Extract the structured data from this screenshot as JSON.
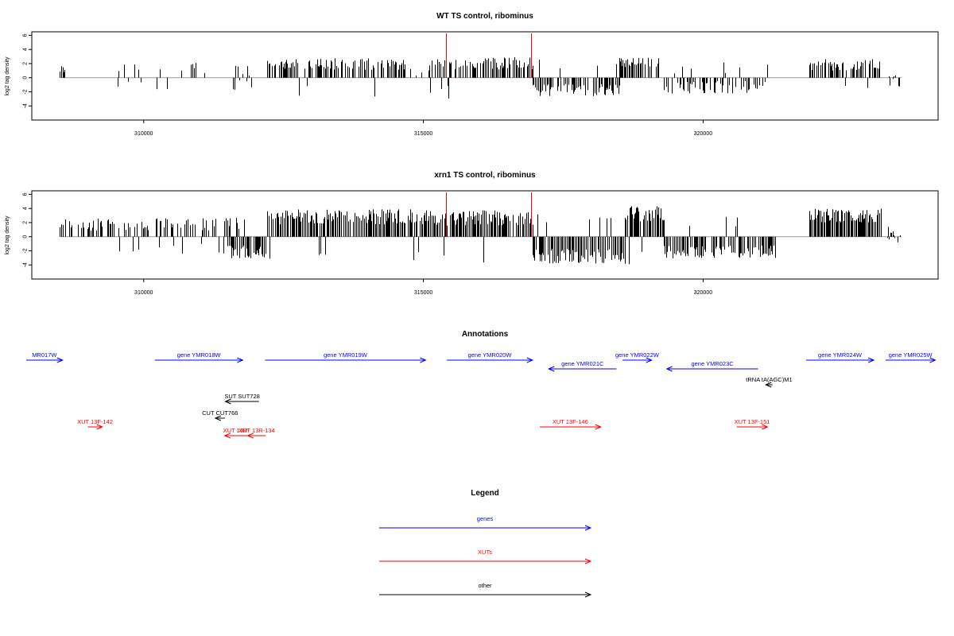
{
  "chart_data": [
    {
      "type": "bar",
      "title": "WT TS control, ribominus",
      "ylabel": "log2 tag density",
      "xlabel": "",
      "xlim": [
        308000,
        324200
      ],
      "ylim": [
        -6,
        6.5
      ],
      "x_ticks": [
        310000,
        315000,
        320000
      ],
      "y_ticks": [
        -4,
        -2,
        0,
        2,
        4,
        6
      ],
      "grid": false,
      "markers": [
        315400,
        316920
      ],
      "marker_color": "#ff0000",
      "segments": [
        {
          "x0": 308500,
          "x1": 308600,
          "seed": 1,
          "density": 0.6,
          "mean": 0.8,
          "amp": 1.4,
          "neg": 0.4
        },
        {
          "x0": 309300,
          "x1": 311200,
          "seed": 2,
          "density": 0.12,
          "mean": 1.0,
          "amp": 1.6,
          "neg": 0.2
        },
        {
          "x0": 311600,
          "x1": 312000,
          "seed": 3,
          "density": 0.5,
          "mean": -0.5,
          "amp": 1.8,
          "neg": 0.7
        },
        {
          "x0": 312200,
          "x1": 314700,
          "seed": 4,
          "density": 0.7,
          "mean": 1.6,
          "amp": 1.8,
          "neg": 0.03
        },
        {
          "x0": 314700,
          "x1": 315100,
          "seed": 5,
          "density": 0.35,
          "mean": 0.4,
          "amp": 1.2,
          "neg": 0.3
        },
        {
          "x0": 315100,
          "x1": 316950,
          "seed": 6,
          "density": 0.75,
          "mean": 1.7,
          "amp": 1.8,
          "neg": 0.02
        },
        {
          "x0": 316950,
          "x1": 318500,
          "seed": 7,
          "density": 0.75,
          "mean": -1.4,
          "amp": 1.8,
          "neg": 0.95
        },
        {
          "x0": 318500,
          "x1": 319200,
          "seed": 8,
          "density": 0.8,
          "mean": 1.8,
          "amp": 1.6,
          "neg": 0.03
        },
        {
          "x0": 319300,
          "x1": 321200,
          "seed": 9,
          "density": 0.5,
          "mean": -1.0,
          "amp": 1.8,
          "neg": 0.9
        },
        {
          "x0": 321900,
          "x1": 323200,
          "seed": 10,
          "density": 0.7,
          "mean": 1.5,
          "amp": 1.6,
          "neg": 0.03
        },
        {
          "x0": 323300,
          "x1": 323550,
          "seed": 11,
          "density": 0.6,
          "mean": 0.0,
          "amp": 2.2,
          "neg": 0.5
        }
      ]
    },
    {
      "type": "bar",
      "title": "xrn1 TS control, ribominus",
      "ylabel": "log2 tag density",
      "xlabel": "",
      "xlim": [
        308000,
        324200
      ],
      "ylim": [
        -6,
        6.5
      ],
      "x_ticks": [
        310000,
        315000,
        320000
      ],
      "y_ticks": [
        -4,
        -2,
        0,
        2,
        4,
        6
      ],
      "grid": false,
      "markers": [
        315400,
        316920
      ],
      "marker_color": "#ff0000",
      "segments": [
        {
          "x0": 308500,
          "x1": 311800,
          "seed": 21,
          "density": 0.55,
          "mean": 1.4,
          "amp": 1.8,
          "neg": 0.08
        },
        {
          "x0": 311500,
          "x1": 312200,
          "seed": 22,
          "density": 0.9,
          "mean": -1.8,
          "amp": 1.8,
          "neg": 0.9
        },
        {
          "x0": 312200,
          "x1": 315200,
          "seed": 23,
          "density": 0.95,
          "mean": 2.4,
          "amp": 2.2,
          "neg": 0.04
        },
        {
          "x0": 315200,
          "x1": 316950,
          "seed": 24,
          "density": 0.95,
          "mean": 2.2,
          "amp": 2.2,
          "neg": 0.04
        },
        {
          "x0": 316950,
          "x1": 318600,
          "seed": 25,
          "density": 0.98,
          "mean": -2.3,
          "amp": 2.2,
          "neg": 0.95
        },
        {
          "x0": 318600,
          "x1": 319300,
          "seed": 26,
          "density": 0.98,
          "mean": 2.8,
          "amp": 2.2,
          "neg": 0.03
        },
        {
          "x0": 319300,
          "x1": 321300,
          "seed": 27,
          "density": 0.9,
          "mean": -1.8,
          "amp": 1.8,
          "neg": 0.92
        },
        {
          "x0": 321900,
          "x1": 323200,
          "seed": 28,
          "density": 0.98,
          "mean": 2.6,
          "amp": 2.0,
          "neg": 0.03
        },
        {
          "x0": 323200,
          "x1": 323550,
          "seed": 29,
          "density": 0.6,
          "mean": 0.2,
          "amp": 2.0,
          "neg": 0.4
        }
      ]
    }
  ],
  "annotations": {
    "title": "Annotations",
    "features": [
      {
        "label": "MR017W",
        "type": "gene",
        "color": "#0000ff",
        "x0": 307900,
        "x1": 308550,
        "row": 0,
        "dir": "+"
      },
      {
        "label": "gene YMR018W",
        "type": "gene",
        "color": "#0000ff",
        "x0": 310200,
        "x1": 311770,
        "row": 0,
        "dir": "+"
      },
      {
        "label": "gene YMR019W",
        "type": "gene",
        "color": "#0000ff",
        "x0": 312170,
        "x1": 315040,
        "row": 0,
        "dir": "+"
      },
      {
        "label": "gene YMR020W",
        "type": "gene",
        "color": "#0000ff",
        "x0": 315420,
        "x1": 316950,
        "row": 0,
        "dir": "+"
      },
      {
        "label": "gene YMR021C",
        "type": "gene",
        "color": "#0000ff",
        "x0": 317240,
        "x1": 318450,
        "row": 1,
        "dir": "-"
      },
      {
        "label": "gene YMR022W",
        "type": "gene",
        "color": "#0000ff",
        "x0": 318560,
        "x1": 319080,
        "row": 0,
        "dir": "+"
      },
      {
        "label": "gene YMR023C",
        "type": "gene",
        "color": "#0000ff",
        "x0": 319350,
        "x1": 320980,
        "row": 1,
        "dir": "-"
      },
      {
        "label": "gene YMR024W",
        "type": "gene",
        "color": "#0000ff",
        "x0": 321840,
        "x1": 323050,
        "row": 0,
        "dir": "+"
      },
      {
        "label": "gene YMR025W",
        "type": "gene",
        "color": "#0000ff",
        "x0": 323260,
        "x1": 324150,
        "row": 0,
        "dir": "+"
      },
      {
        "label": "tRNA tA(AGC)M1",
        "type": "other",
        "color": "#000000",
        "x0": 321120,
        "x1": 321240,
        "row": 2,
        "dir": "-"
      },
      {
        "label": "SUT SUT728",
        "type": "other",
        "color": "#000000",
        "x0": 311460,
        "x1": 312060,
        "row": 3,
        "dir": "-"
      },
      {
        "label": "CUT CUT766",
        "type": "other",
        "color": "#000000",
        "x0": 311280,
        "x1": 311450,
        "row": 4,
        "dir": "-"
      },
      {
        "label": "XUT 13F-142",
        "type": "XUT",
        "color": "#ff0000",
        "x0": 309000,
        "x1": 309260,
        "row": 5,
        "dir": "+"
      },
      {
        "label": "XUT 13F-146",
        "type": "XUT",
        "color": "#ff0000",
        "x0": 317080,
        "x1": 318170,
        "row": 5,
        "dir": "+"
      },
      {
        "label": "XUT 13F-151",
        "type": "XUT",
        "color": "#ff0000",
        "x0": 320600,
        "x1": 321150,
        "row": 5,
        "dir": "+"
      },
      {
        "label": "XUT 13R-",
        "type": "XUT",
        "color": "#ff0000",
        "x0": 311450,
        "x1": 311860,
        "row": 6,
        "dir": "-"
      },
      {
        "label": "XUT 13R-134",
        "type": "XUT",
        "color": "#ff0000",
        "x0": 311860,
        "x1": 312180,
        "row": 6,
        "dir": "-"
      }
    ]
  },
  "legend": {
    "title": "Legend",
    "items": [
      {
        "label": "genes",
        "color": "#0000ff"
      },
      {
        "label": "XUTs",
        "color": "#ff0000"
      },
      {
        "label": "other",
        "color": "#000000"
      }
    ]
  }
}
